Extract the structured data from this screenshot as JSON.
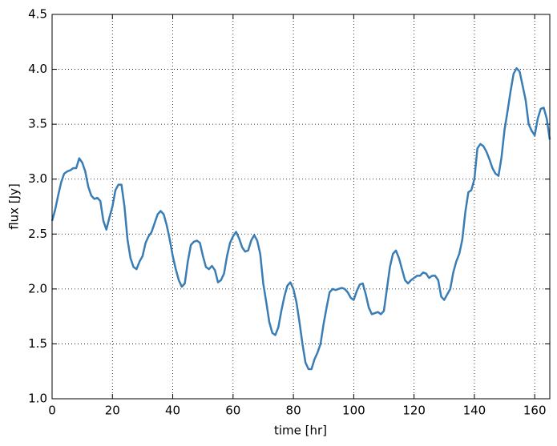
{
  "chart_data": {
    "type": "line",
    "xlabel": "time [hr]",
    "ylabel": "flux [Jy]",
    "x": [
      0,
      1,
      2,
      3,
      4,
      5,
      6,
      7,
      8,
      9,
      10,
      11,
      12,
      13,
      14,
      15,
      16,
      17,
      18,
      19,
      20,
      21,
      22,
      23,
      24,
      25,
      26,
      27,
      28,
      29,
      30,
      31,
      32,
      33,
      34,
      35,
      36,
      37,
      38,
      39,
      40,
      41,
      42,
      43,
      44,
      45,
      46,
      47,
      48,
      49,
      50,
      51,
      52,
      53,
      54,
      55,
      56,
      57,
      58,
      59,
      60,
      61,
      62,
      63,
      64,
      65,
      66,
      67,
      68,
      69,
      70,
      71,
      72,
      73,
      74,
      75,
      76,
      77,
      78,
      79,
      80,
      81,
      82,
      83,
      84,
      85,
      86,
      87,
      88,
      89,
      90,
      91,
      92,
      93,
      94,
      95,
      96,
      97,
      98,
      99,
      100,
      101,
      102,
      103,
      104,
      105,
      106,
      107,
      108,
      109,
      110,
      111,
      112,
      113,
      114,
      115,
      116,
      117,
      118,
      119,
      120,
      121,
      122,
      123,
      124,
      125,
      126,
      127,
      128,
      129,
      130,
      131,
      132,
      133,
      134,
      135,
      136,
      137,
      138,
      139,
      140,
      141,
      142,
      143,
      144,
      145,
      146,
      147,
      148,
      149,
      150,
      151,
      152,
      153,
      154,
      155,
      156,
      157,
      158,
      159,
      160,
      161,
      162,
      163,
      164,
      165
    ],
    "series": [
      {
        "color": "#3a7db5",
        "values": [
          2.62,
          2.72,
          2.85,
          2.97,
          3.05,
          3.07,
          3.08,
          3.1,
          3.1,
          3.19,
          3.15,
          3.07,
          2.93,
          2.85,
          2.82,
          2.83,
          2.8,
          2.62,
          2.54,
          2.65,
          2.75,
          2.9,
          2.95,
          2.95,
          2.75,
          2.45,
          2.28,
          2.2,
          2.18,
          2.25,
          2.3,
          2.42,
          2.48,
          2.52,
          2.6,
          2.68,
          2.71,
          2.68,
          2.58,
          2.45,
          2.3,
          2.18,
          2.08,
          2.02,
          2.05,
          2.25,
          2.4,
          2.43,
          2.44,
          2.42,
          2.3,
          2.2,
          2.18,
          2.21,
          2.17,
          2.06,
          2.08,
          2.14,
          2.3,
          2.42,
          2.48,
          2.52,
          2.46,
          2.38,
          2.34,
          2.35,
          2.44,
          2.49,
          2.44,
          2.32,
          2.05,
          1.88,
          1.7,
          1.6,
          1.58,
          1.65,
          1.8,
          1.93,
          2.03,
          2.06,
          2.0,
          1.88,
          1.7,
          1.5,
          1.33,
          1.27,
          1.27,
          1.36,
          1.42,
          1.5,
          1.68,
          1.83,
          1.97,
          2.0,
          1.99,
          2.0,
          2.01,
          2.0,
          1.97,
          1.92,
          1.9,
          1.98,
          2.04,
          2.05,
          1.95,
          1.83,
          1.77,
          1.78,
          1.79,
          1.77,
          1.8,
          2.0,
          2.2,
          2.32,
          2.35,
          2.28,
          2.18,
          2.08,
          2.05,
          2.08,
          2.1,
          2.12,
          2.12,
          2.15,
          2.14,
          2.1,
          2.12,
          2.12,
          2.08,
          1.93,
          1.9,
          1.95,
          2.0,
          2.15,
          2.25,
          2.32,
          2.45,
          2.7,
          2.88,
          2.9,
          3.0,
          3.28,
          3.32,
          3.3,
          3.25,
          3.18,
          3.1,
          3.05,
          3.03,
          3.2,
          3.45,
          3.62,
          3.8,
          3.96,
          4.01,
          3.98,
          3.85,
          3.72,
          3.5,
          3.44,
          3.4,
          3.55,
          3.64,
          3.65,
          3.55,
          3.36
        ]
      }
    ],
    "xlim": [
      0,
      165
    ],
    "xticks": [
      0,
      20,
      40,
      60,
      80,
      100,
      120,
      140,
      160
    ],
    "ylim": [
      1.0,
      4.5
    ],
    "yticks": [
      {
        "value": 1.0,
        "label": "1.0"
      },
      1.5,
      {
        "value": 2.0,
        "label": "2.0"
      },
      2.5,
      {
        "value": 3.0,
        "label": "3.0"
      },
      3.5,
      {
        "value": 4.0,
        "label": "4.0"
      },
      4.5
    ],
    "grid": true
  }
}
